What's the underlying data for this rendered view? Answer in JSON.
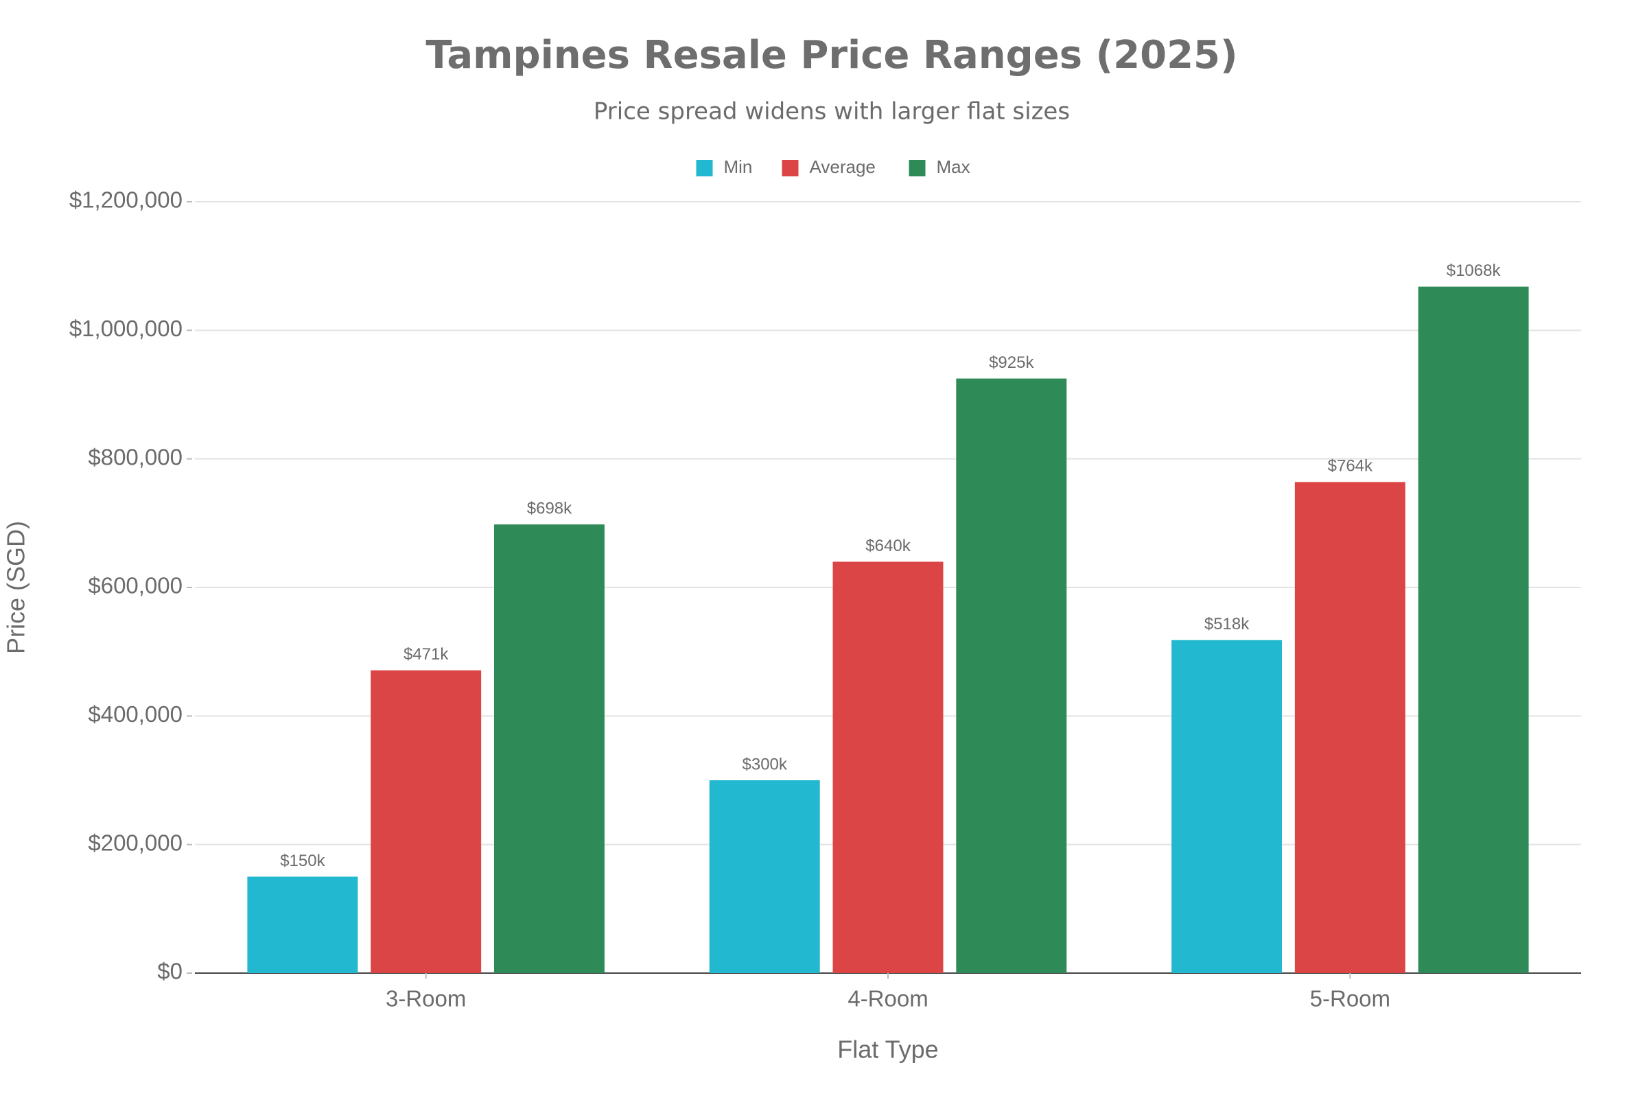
{
  "chart_data": {
    "type": "bar",
    "title": "Tampines Resale Price Ranges (2025)",
    "subtitle": "Price spread widens with larger flat sizes",
    "x_label": "Flat Type",
    "y_label": "Price (SGD)",
    "categories": [
      "3-Room",
      "4-Room",
      "5-Room"
    ],
    "series": [
      {
        "name": "Min",
        "color": "#22b8cf",
        "values": [
          150000,
          300000,
          518000
        ],
        "value_labels": [
          "$150k",
          "$300k",
          "$518k"
        ]
      },
      {
        "name": "Average",
        "color": "#db4545",
        "values": [
          471000,
          640000,
          764000
        ],
        "value_labels": [
          "$471k",
          "$640k",
          "$764k"
        ]
      },
      {
        "name": "Max",
        "color": "#2e8b57",
        "values": [
          698000,
          925000,
          1068000
        ],
        "value_labels": [
          "$698k",
          "$925k",
          "$1068k"
        ]
      }
    ],
    "ylim": [
      0,
      1200000
    ],
    "yticks": [
      {
        "value": 0,
        "label": "$0"
      },
      {
        "value": 200000,
        "label": "$200,000"
      },
      {
        "value": 400000,
        "label": "$400,000"
      },
      {
        "value": 600000,
        "label": "$600,000"
      },
      {
        "value": 800000,
        "label": "$800,000"
      },
      {
        "value": 1000000,
        "label": "$1,000,000"
      },
      {
        "value": 1200000,
        "label": "$1,200,000"
      }
    ],
    "grid": true,
    "legend": "top"
  }
}
